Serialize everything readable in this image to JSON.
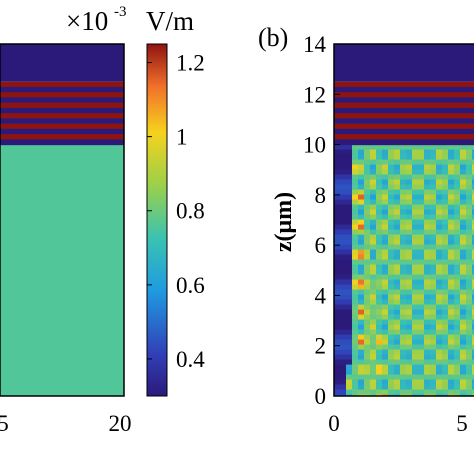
{
  "chart_data": [
    {
      "type": "heatmap",
      "panel_label": "",
      "x_ticks": [
        "5",
        "20"
      ],
      "z_layers": [
        {
          "z_from": 0,
          "z_to": 10,
          "value": 0.76
        },
        {
          "z_from": 10,
          "z_to": 12.5,
          "pattern": "stripes",
          "count": 6,
          "min": 0.3,
          "max": 1.25
        },
        {
          "z_from": 12.5,
          "z_to": 14,
          "value": 0.3
        }
      ]
    },
    {
      "type": "heatmap",
      "panel_label": "(b)",
      "ylabel": "z(μm)",
      "ylim": [
        0,
        14
      ],
      "y_ticks": [
        "0",
        "2",
        "4",
        "6",
        "8",
        "10",
        "12",
        "14"
      ],
      "x_ticks": [
        "0",
        "5"
      ],
      "z_layers": [
        {
          "z_from": 0,
          "z_to": 10,
          "pattern": "interference",
          "min": 0.3,
          "max": 1.25
        },
        {
          "z_from": 10,
          "z_to": 12.5,
          "pattern": "stripes",
          "count": 6,
          "min": 0.3,
          "max": 1.25
        },
        {
          "z_from": 12.5,
          "z_to": 14,
          "value": 0.3
        }
      ]
    }
  ],
  "colorbar": {
    "exponent_base": "×10",
    "exponent_power": "-3",
    "unit": "V/m",
    "ticks": [
      "0.4",
      "0.6",
      "0.8",
      "1",
      "1.2"
    ],
    "tick_values": [
      0.4,
      0.6,
      0.8,
      1.0,
      1.2
    ],
    "range": [
      0.3,
      1.25
    ],
    "colormap": "jet"
  }
}
